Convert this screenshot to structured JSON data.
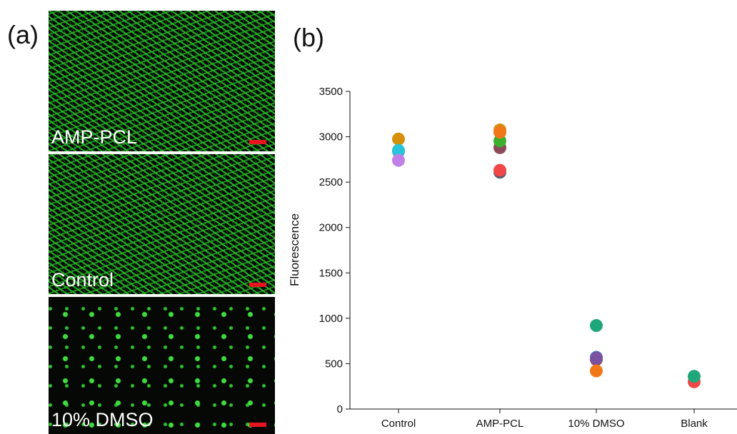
{
  "panel_a": {
    "label": "(a)",
    "images": [
      {
        "label": "AMP-PCL"
      },
      {
        "label": "Control"
      },
      {
        "label": "10% DMSO"
      }
    ]
  },
  "panel_b": {
    "label": "(b)"
  },
  "chart_data": {
    "type": "scatter",
    "y_label": "Fluorescence",
    "categories": [
      "Control",
      "AMP-PCL",
      "10% DMSO",
      "Blank"
    ],
    "ylim": [
      0,
      3500
    ],
    "yticks": [
      0,
      500,
      1000,
      1500,
      2000,
      2500,
      3000,
      3500
    ],
    "series": [
      {
        "color": "#4a78d0",
        "values": [
          2840,
          null,
          570,
          null
        ]
      },
      {
        "color": "#d4900a",
        "values": [
          2975,
          3075,
          null,
          null
        ]
      },
      {
        "color": "#28c4d8",
        "values": [
          2850,
          null,
          null,
          null
        ]
      },
      {
        "color": "#c080e8",
        "values": [
          2740,
          null,
          null,
          null
        ]
      },
      {
        "color": "#4a5a70",
        "values": [
          null,
          2610,
          null,
          null
        ]
      },
      {
        "color": "#f04848",
        "values": [
          null,
          2630,
          null,
          300
        ]
      },
      {
        "color": "#8a4a5a",
        "values": [
          null,
          2880,
          545,
          null
        ]
      },
      {
        "color": "#3cb02c",
        "values": [
          null,
          2955,
          null,
          null
        ]
      },
      {
        "color": "#f07818",
        "values": [
          null,
          3050,
          420,
          null
        ]
      },
      {
        "color": "#7a50a0",
        "values": [
          null,
          null,
          560,
          null
        ]
      },
      {
        "color": "#1fa67a",
        "values": [
          null,
          null,
          920,
          360
        ]
      }
    ]
  }
}
